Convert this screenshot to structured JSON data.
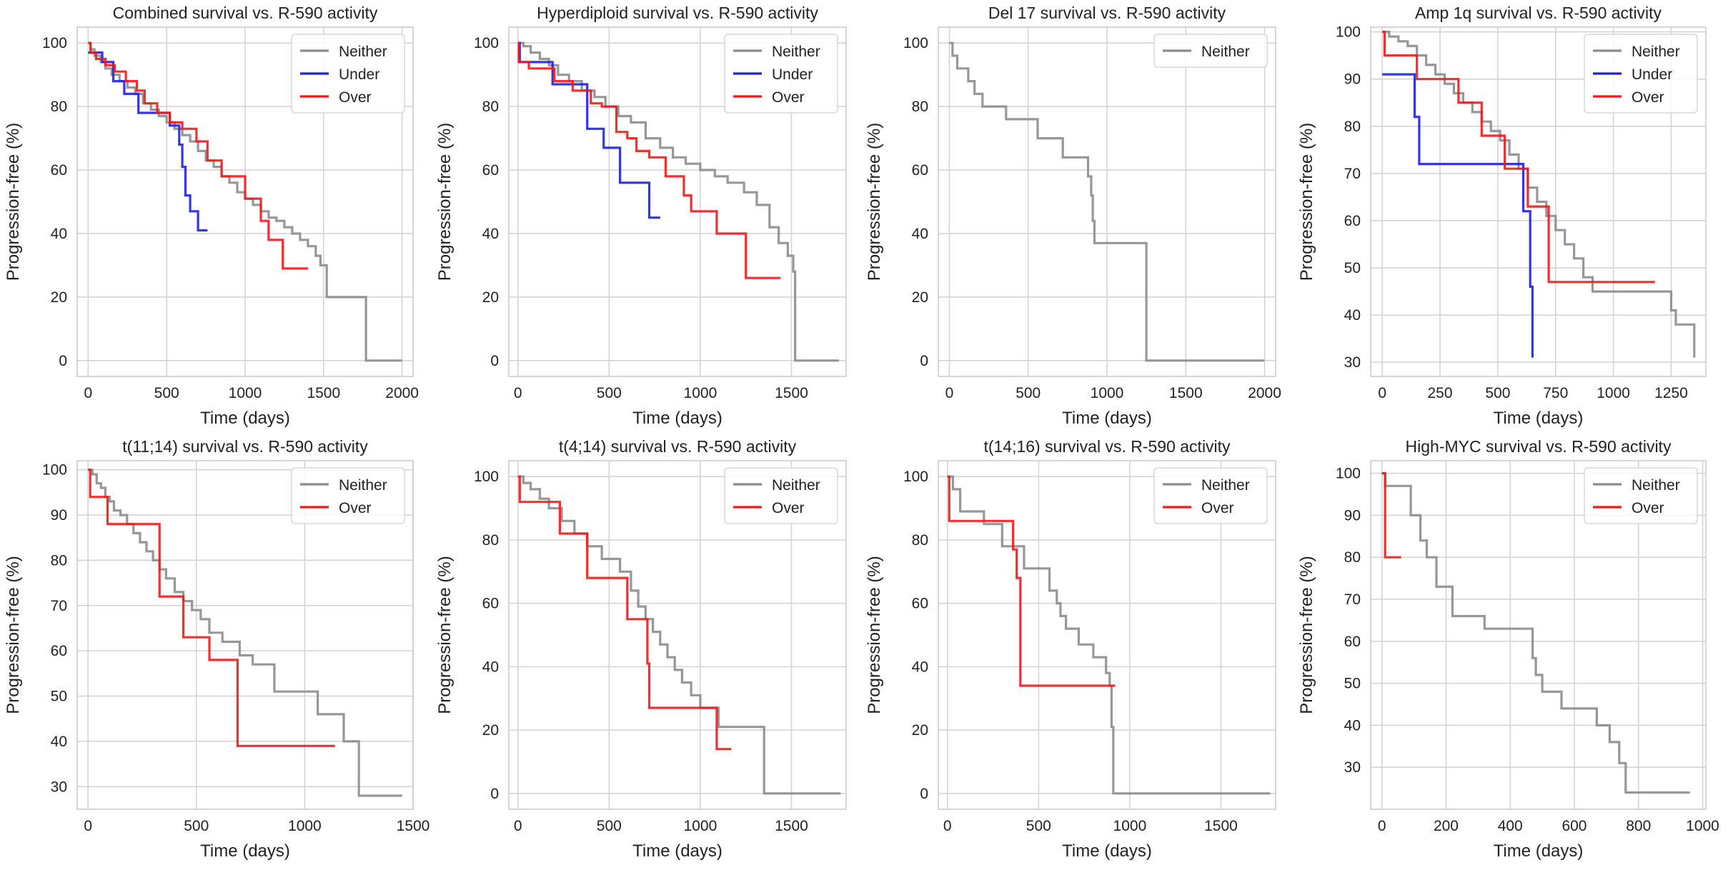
{
  "colors": {
    "Neither": "#8c8c8c",
    "Under": "#1f1fe6",
    "Over": "#f01a1a",
    "grid": "#d2d2d2",
    "frame": "#c8c8c8"
  },
  "chart_data": [
    {
      "type": "line",
      "step": true,
      "title": "Combined survival vs. R-590 activity",
      "xlabel": "Time (days)",
      "ylabel": "Progression-free (%)",
      "xlim": [
        -70,
        2070
      ],
      "ylim": [
        -5,
        105
      ],
      "xticks": [
        0,
        500,
        1000,
        1500,
        2000
      ],
      "yticks": [
        0,
        20,
        40,
        60,
        80,
        100
      ],
      "grid": true,
      "legend": "top-right",
      "series": [
        {
          "name": "Neither",
          "x": [
            0,
            15,
            40,
            80,
            110,
            150,
            200,
            250,
            300,
            350,
            400,
            450,
            500,
            550,
            600,
            650,
            700,
            750,
            800,
            850,
            900,
            950,
            1000,
            1050,
            1100,
            1150,
            1200,
            1250,
            1300,
            1350,
            1400,
            1450,
            1480,
            1510,
            1520,
            1760,
            1770,
            2000
          ],
          "y": [
            100,
            98,
            96,
            94,
            92,
            90,
            88,
            86,
            84,
            81,
            79,
            77,
            75,
            73,
            71,
            69,
            66,
            63,
            61,
            58,
            56,
            53,
            51,
            49,
            47,
            45,
            44,
            42,
            40,
            38,
            36,
            33,
            30,
            30,
            20,
            20,
            0,
            0
          ]
        },
        {
          "name": "Under",
          "x": [
            0,
            90,
            160,
            230,
            320,
            420,
            520,
            580,
            600,
            620,
            650,
            700,
            760
          ],
          "y": [
            97,
            94,
            88,
            84,
            78,
            78,
            74,
            68,
            61,
            52,
            47,
            41,
            41
          ]
        },
        {
          "name": "Over",
          "x": [
            0,
            15,
            50,
            110,
            170,
            240,
            310,
            360,
            440,
            520,
            600,
            690,
            760,
            850,
            1000,
            1100,
            1150,
            1240,
            1400
          ],
          "y": [
            100,
            97,
            95,
            93,
            91,
            88,
            85,
            81,
            78,
            75,
            73,
            69,
            63,
            58,
            51,
            44,
            38,
            29,
            29
          ]
        }
      ]
    },
    {
      "type": "line",
      "step": true,
      "title": "Hyperdiploid survival vs. R-590 activity",
      "xlabel": "Time (days)",
      "ylabel": "Progression-free (%)",
      "xlim": [
        -50,
        1800
      ],
      "ylim": [
        -5,
        105
      ],
      "xticks": [
        0,
        500,
        1000,
        1500
      ],
      "yticks": [
        0,
        20,
        40,
        60,
        80,
        100
      ],
      "grid": true,
      "legend": "top-right",
      "series": [
        {
          "name": "Neither",
          "x": [
            0,
            30,
            70,
            120,
            170,
            220,
            280,
            350,
            420,
            480,
            550,
            620,
            700,
            780,
            850,
            920,
            1000,
            1080,
            1150,
            1240,
            1310,
            1380,
            1430,
            1480,
            1510,
            1520,
            1760
          ],
          "y": [
            100,
            99,
            97,
            95,
            93,
            90,
            88,
            85,
            83,
            80,
            77,
            75,
            70,
            67,
            64,
            62,
            60,
            58,
            56,
            53,
            49,
            42,
            37,
            33,
            28,
            0,
            0
          ]
        },
        {
          "name": "Under",
          "x": [
            0,
            10,
            100,
            190,
            320,
            380,
            470,
            560,
            720,
            780
          ],
          "y": [
            100,
            94,
            94,
            87,
            87,
            73,
            67,
            56,
            45,
            45
          ]
        },
        {
          "name": "Over",
          "x": [
            0,
            5,
            60,
            200,
            300,
            400,
            460,
            540,
            600,
            650,
            720,
            810,
            910,
            950,
            1090,
            1250,
            1440
          ],
          "y": [
            100,
            94,
            92,
            88,
            85,
            81,
            80,
            72,
            70,
            66,
            64,
            58,
            52,
            47,
            40,
            26,
            26
          ]
        }
      ]
    },
    {
      "type": "line",
      "step": true,
      "title": "Del 17 survival vs. R-590 activity",
      "xlabel": "Time (days)",
      "ylabel": "Progression-free (%)",
      "xlim": [
        -70,
        2070
      ],
      "ylim": [
        -5,
        105
      ],
      "xticks": [
        0,
        500,
        1000,
        1500,
        2000
      ],
      "yticks": [
        0,
        20,
        40,
        60,
        80,
        100
      ],
      "grid": true,
      "legend": "top-right",
      "series": [
        {
          "name": "Neither",
          "x": [
            0,
            20,
            50,
            120,
            160,
            210,
            360,
            560,
            720,
            880,
            900,
            910,
            920,
            1250,
            2000
          ],
          "y": [
            100,
            96,
            92,
            88,
            84,
            80,
            76,
            70,
            64,
            58,
            52,
            44,
            37,
            0,
            0
          ]
        }
      ]
    },
    {
      "type": "line",
      "step": true,
      "title": "Amp 1q survival vs. R-590 activity",
      "xlabel": "Time (days)",
      "ylabel": "Progression-free (%)",
      "xlim": [
        -50,
        1400
      ],
      "ylim": [
        27,
        101
      ],
      "xticks": [
        0,
        250,
        500,
        750,
        1000,
        1250
      ],
      "yticks": [
        30,
        40,
        50,
        60,
        70,
        80,
        90,
        100
      ],
      "grid": true,
      "legend": "top-right",
      "series": [
        {
          "name": "Neither",
          "x": [
            0,
            30,
            70,
            110,
            150,
            190,
            230,
            270,
            310,
            350,
            390,
            430,
            470,
            510,
            550,
            590,
            630,
            670,
            710,
            750,
            790,
            830,
            870,
            910,
            1250,
            1270,
            1350
          ],
          "y": [
            100,
            99,
            98,
            97,
            95,
            93,
            91,
            89,
            87,
            85,
            83,
            81,
            79,
            77,
            74,
            71,
            67,
            64,
            61,
            58,
            55,
            52,
            48,
            45,
            41,
            38,
            31
          ]
        },
        {
          "name": "Under",
          "x": [
            0,
            140,
            160,
            560,
            610,
            640,
            650
          ],
          "y": [
            91,
            82,
            72,
            72,
            62,
            46,
            31
          ]
        },
        {
          "name": "Over",
          "x": [
            0,
            10,
            150,
            330,
            430,
            530,
            630,
            720,
            1180
          ],
          "y": [
            100,
            95,
            90,
            85,
            78,
            71,
            63,
            47,
            47
          ]
        }
      ]
    },
    {
      "type": "line",
      "step": true,
      "title": "t(11;14) survival vs. R-590 activity",
      "xlabel": "Time (days)",
      "ylabel": "Progression-free (%)",
      "xlim": [
        -50,
        1500
      ],
      "ylim": [
        25,
        102
      ],
      "xticks": [
        0,
        500,
        1000,
        1500
      ],
      "yticks": [
        30,
        40,
        50,
        60,
        70,
        80,
        90,
        100
      ],
      "grid": true,
      "legend": "top-right",
      "series": [
        {
          "name": "Neither",
          "x": [
            0,
            20,
            40,
            60,
            80,
            100,
            120,
            150,
            180,
            210,
            240,
            270,
            300,
            330,
            360,
            400,
            440,
            480,
            520,
            560,
            620,
            700,
            760,
            860,
            1060,
            1180,
            1250,
            1450
          ],
          "y": [
            100,
            99,
            97,
            96,
            94,
            93,
            91,
            90,
            88,
            86,
            84,
            82,
            80,
            78,
            76,
            73,
            71,
            69,
            67,
            64,
            62,
            59,
            57,
            51,
            46,
            40,
            28,
            28
          ]
        },
        {
          "name": "Over",
          "x": [
            0,
            10,
            90,
            330,
            440,
            560,
            690,
            1140
          ],
          "y": [
            100,
            94,
            88,
            72,
            63,
            58,
            39,
            39
          ]
        }
      ]
    },
    {
      "type": "line",
      "step": true,
      "title": "t(4;14) survival vs. R-590 activity",
      "xlabel": "Time (days)",
      "ylabel": "Progression-free (%)",
      "xlim": [
        -50,
        1800
      ],
      "ylim": [
        -5,
        105
      ],
      "xticks": [
        0,
        500,
        1000,
        1500
      ],
      "yticks": [
        0,
        20,
        40,
        60,
        80,
        100
      ],
      "grid": true,
      "legend": "top-right",
      "series": [
        {
          "name": "Neither",
          "x": [
            0,
            30,
            70,
            120,
            170,
            240,
            310,
            380,
            460,
            560,
            620,
            660,
            700,
            740,
            780,
            820,
            860,
            900,
            950,
            1000,
            1100,
            1350,
            1770
          ],
          "y": [
            100,
            98,
            96,
            93,
            90,
            86,
            82,
            78,
            74,
            70,
            64,
            59,
            55,
            51,
            47,
            43,
            39,
            35,
            31,
            27,
            21,
            0,
            0
          ]
        },
        {
          "name": "Over",
          "x": [
            0,
            10,
            230,
            380,
            600,
            710,
            720,
            1090,
            1170
          ],
          "y": [
            100,
            92,
            82,
            68,
            55,
            41,
            27,
            14,
            14
          ]
        }
      ]
    },
    {
      "type": "line",
      "step": true,
      "title": "t(14;16) survival vs. R-590 activity",
      "xlabel": "Time (days)",
      "ylabel": "Progression-free (%)",
      "xlim": [
        -50,
        1800
      ],
      "ylim": [
        -5,
        105
      ],
      "xticks": [
        0,
        500,
        1000,
        1500
      ],
      "yticks": [
        0,
        20,
        40,
        60,
        80,
        100
      ],
      "grid": true,
      "legend": "top-right",
      "series": [
        {
          "name": "Neither",
          "x": [
            0,
            30,
            70,
            200,
            300,
            420,
            560,
            600,
            620,
            650,
            720,
            800,
            870,
            890,
            900,
            910,
            1770
          ],
          "y": [
            100,
            96,
            89,
            85,
            78,
            71,
            64,
            60,
            56,
            52,
            47,
            43,
            38,
            34,
            21,
            0,
            0
          ]
        },
        {
          "name": "Over",
          "x": [
            0,
            10,
            360,
            380,
            400,
            920
          ],
          "y": [
            100,
            86,
            77,
            68,
            34,
            34
          ]
        }
      ]
    },
    {
      "type": "line",
      "step": true,
      "title": "High-MYC survival vs. R-590 activity",
      "xlabel": "Time (days)",
      "ylabel": "Progression-free (%)",
      "xlim": [
        -35,
        1010
      ],
      "ylim": [
        20,
        103
      ],
      "xticks": [
        0,
        200,
        400,
        600,
        800,
        1000
      ],
      "yticks": [
        30,
        40,
        50,
        60,
        70,
        80,
        90,
        100
      ],
      "grid": true,
      "legend": "top-right",
      "series": [
        {
          "name": "Neither",
          "x": [
            0,
            10,
            90,
            120,
            140,
            170,
            220,
            320,
            470,
            480,
            500,
            560,
            670,
            710,
            740,
            760,
            960
          ],
          "y": [
            100,
            97,
            90,
            84,
            80,
            73,
            66,
            63,
            56,
            52,
            48,
            44,
            40,
            36,
            31,
            24,
            24
          ]
        },
        {
          "name": "Over",
          "x": [
            0,
            10,
            60
          ],
          "y": [
            100,
            80,
            80
          ]
        }
      ]
    }
  ]
}
